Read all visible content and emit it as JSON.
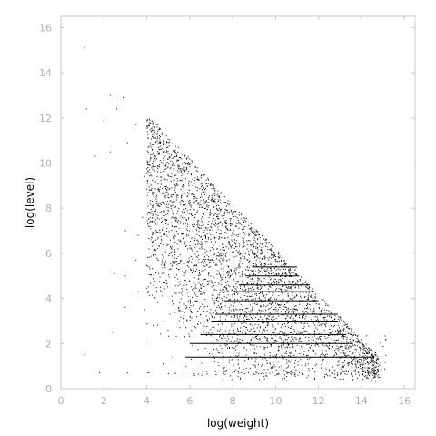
{
  "chart_data": {
    "type": "scatter",
    "title": "",
    "xlabel": "log(weight)",
    "ylabel": "log(level)",
    "xlim": [
      0,
      16.5
    ],
    "ylim": [
      0,
      16.5
    ],
    "x_ticks": [
      0,
      2,
      4,
      6,
      8,
      10,
      12,
      14,
      16
    ],
    "y_ticks": [
      0,
      2,
      4,
      6,
      8,
      10,
      12,
      14,
      16
    ],
    "grid": false,
    "legend": "none",
    "point_color": "#000000",
    "frame_color": "#c8c8c8",
    "tick_label_color": "#b0b0b0",
    "dense_region": {
      "description_of_shape": "triangle",
      "upper_edge": [
        [
          4.0,
          12.0
        ],
        [
          11.0,
          5.0
        ]
      ],
      "lower_edge_start": [
        4.0,
        0.5
      ]
    },
    "series": [
      {
        "name": "",
        "points": [
          [
            1.1,
            15.1
          ],
          [
            2.3,
            13.0
          ],
          [
            2.9,
            12.9
          ],
          [
            1.2,
            12.4
          ],
          [
            2.6,
            12.4
          ],
          [
            3.5,
            11.7
          ],
          [
            2.0,
            11.9
          ],
          [
            3.1,
            10.9
          ],
          [
            1.6,
            10.3
          ],
          [
            2.3,
            10.5
          ],
          [
            3.9,
            9.4
          ],
          [
            3.0,
            7.0
          ],
          [
            3.0,
            5.0
          ],
          [
            2.5,
            5.1
          ],
          [
            3.5,
            5.7
          ],
          [
            3.6,
            4.3
          ],
          [
            3.0,
            3.6
          ],
          [
            2.4,
            2.5
          ],
          [
            4.3,
            2.8
          ],
          [
            1.1,
            1.5
          ],
          [
            1.8,
            0.7
          ],
          [
            3.1,
            0.7
          ],
          [
            4.1,
            0.7
          ],
          [
            4.8,
            1.1
          ],
          [
            5.2,
            1.4
          ],
          [
            3.9,
            3.5
          ],
          [
            3.8,
            7.6
          ],
          [
            3.6,
            6.8
          ],
          [
            4.1,
            6.2
          ],
          [
            4.2,
            8.8
          ]
        ]
      }
    ],
    "bands": [
      {
        "y": 1.4,
        "x_start": 5.8,
        "x_end": 14.6
      },
      {
        "y": 2.0,
        "x_start": 6.0,
        "x_end": 13.6
      },
      {
        "y": 2.4,
        "x_start": 6.5,
        "x_end": 13.3
      },
      {
        "y": 3.0,
        "x_start": 7.0,
        "x_end": 12.9
      },
      {
        "y": 3.3,
        "x_start": 7.2,
        "x_end": 12.9
      },
      {
        "y": 3.9,
        "x_start": 7.6,
        "x_end": 12.0
      },
      {
        "y": 4.3,
        "x_start": 8.0,
        "x_end": 11.8
      },
      {
        "y": 4.6,
        "x_start": 8.3,
        "x_end": 11.6
      },
      {
        "y": 5.0,
        "x_start": 8.6,
        "x_end": 11.1
      },
      {
        "y": 5.4,
        "x_start": 8.9,
        "x_end": 11.0
      }
    ]
  }
}
